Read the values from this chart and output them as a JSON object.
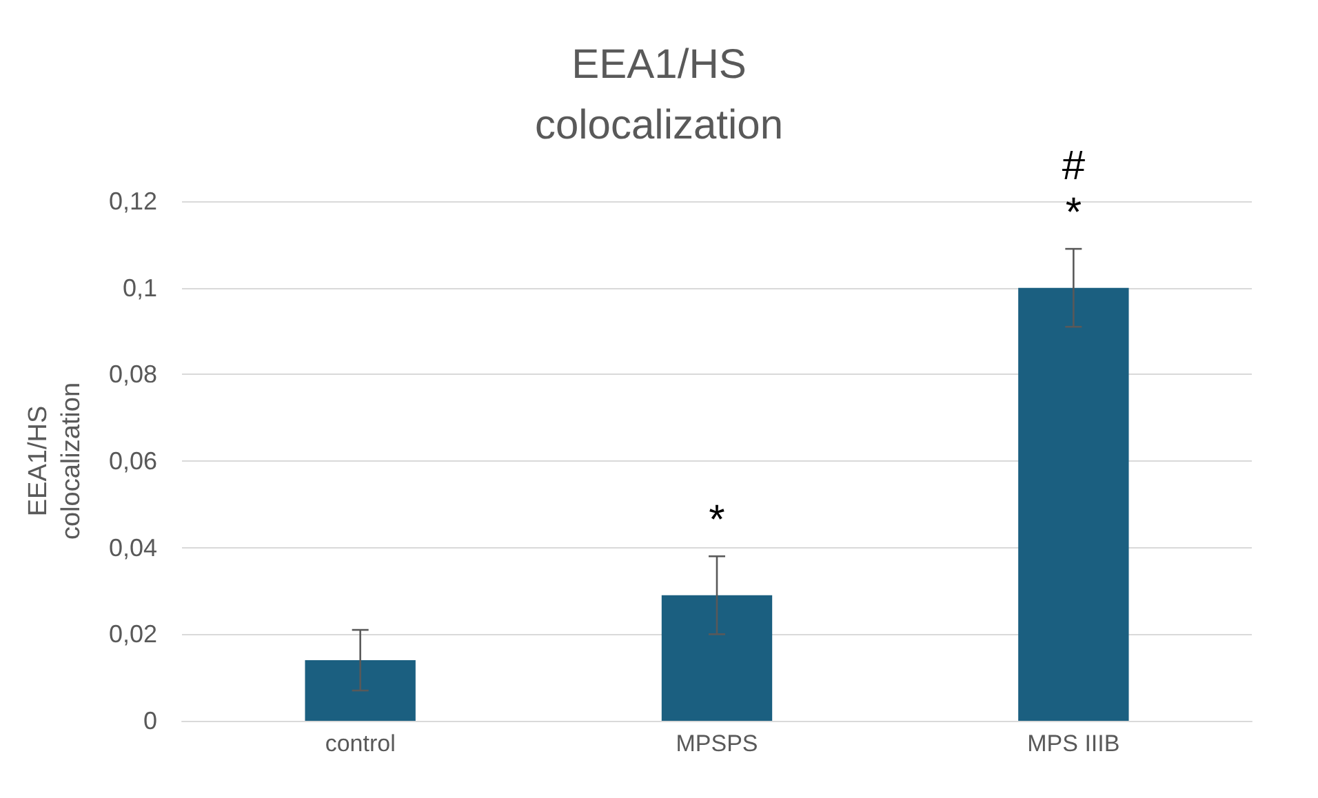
{
  "chart_data": {
    "type": "bar",
    "title": "EEA1/HS\ncolocalization",
    "ylabel": "EEA1/HS\ncolocalization",
    "categories": [
      "control",
      "MPSPS",
      "MPS IIIB"
    ],
    "values": [
      0.014,
      0.029,
      0.1
    ],
    "errors": [
      0.007,
      0.009,
      0.009
    ],
    "color": "#1b5f80",
    "ylim": [
      0,
      0.12
    ],
    "yticks": [
      0,
      {
        "value": 0.02,
        "label": "0,02"
      },
      {
        "value": 0.04,
        "label": "0,04"
      },
      {
        "value": 0.06,
        "label": "0,06"
      },
      {
        "value": 0.08,
        "label": "0,08"
      },
      {
        "value": 0.1,
        "label": "0,1"
      },
      {
        "value": 0.12,
        "label": "0,12"
      }
    ],
    "grid": "y",
    "annotations": [
      "*",
      "*",
      "#"
    ]
  }
}
